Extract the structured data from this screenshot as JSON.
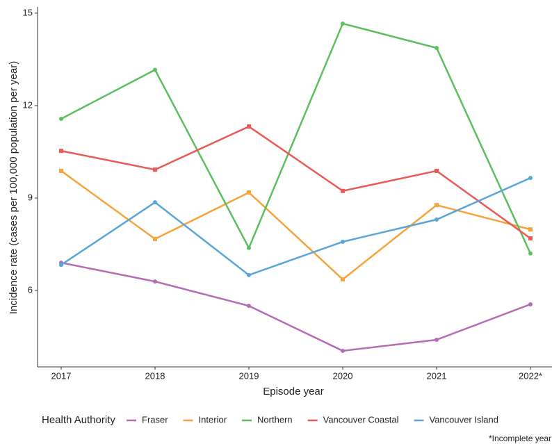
{
  "chart_data": {
    "type": "line",
    "x_label": "Episode year",
    "y_label": "Incidence rate (cases per 100,000 population per year)",
    "categories": [
      "2017",
      "2018",
      "2019",
      "2020",
      "2021",
      "2022*"
    ],
    "ylim": [
      3.52,
      15.2
    ],
    "yticks": [
      6,
      9,
      12,
      15
    ],
    "grid": false,
    "legend_title": "Health Authority",
    "legend_position": "bottom",
    "footnote": "*Incomplete year",
    "series": [
      {
        "name": "Fraser",
        "color": "#b36db5",
        "values": [
          6.9,
          6.29,
          5.5,
          4.04,
          4.4,
          5.55
        ]
      },
      {
        "name": "Interior",
        "color": "#f5a33a",
        "values": [
          9.88,
          7.67,
          9.18,
          6.36,
          8.77,
          7.98
        ]
      },
      {
        "name": "Northern",
        "color": "#5cbf5f",
        "values": [
          11.57,
          13.16,
          7.38,
          14.66,
          13.87,
          7.2
        ]
      },
      {
        "name": "Vancouver Coastal",
        "color": "#ea5a56",
        "values": [
          10.53,
          9.92,
          11.32,
          9.23,
          9.88,
          7.69
        ]
      },
      {
        "name": "Vancouver Island",
        "color": "#5aa5d8",
        "values": [
          6.83,
          8.86,
          6.5,
          7.58,
          8.3,
          9.65
        ]
      }
    ]
  }
}
